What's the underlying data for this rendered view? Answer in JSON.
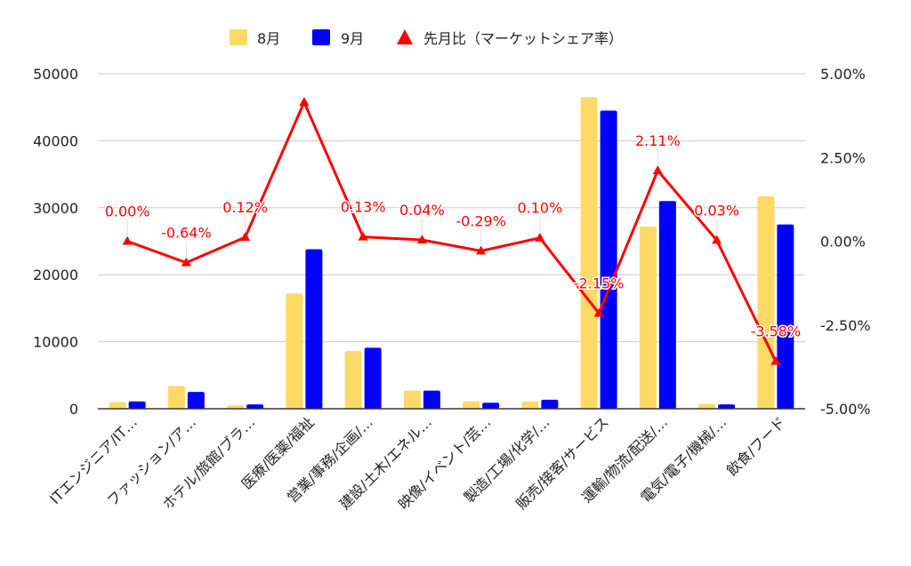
{
  "chart_data": {
    "type": "bar",
    "categories": [
      "ITエンジニア/IT…",
      "ファッション/ア…",
      "ホテル/旅館/ブラ…",
      "医療/医薬/福祉",
      "営業/事務/企画/…",
      "建設/土木/エネル…",
      "映像/イベント/芸…",
      "製造/工場/化学/…",
      "販売/接客/サービス",
      "運輸/物流/配送/…",
      "電気/電子/機械/…",
      "飲食/フード"
    ],
    "series": [
      {
        "name": "8月",
        "type": "bar",
        "axis": "left",
        "color": "#FFD966",
        "values": [
          1000,
          3400,
          500,
          17200,
          8600,
          2700,
          1100,
          1100,
          46500,
          27200,
          700,
          31700
        ]
      },
      {
        "name": "9月",
        "type": "bar",
        "axis": "left",
        "color": "#0000FF",
        "values": [
          1100,
          2500,
          650,
          23800,
          9100,
          2700,
          900,
          1350,
          44500,
          31000,
          650,
          27500
        ]
      },
      {
        "name": "先月比（マーケットシェア率）",
        "type": "line",
        "axis": "right",
        "color": "#FF0000",
        "marker": "triangle",
        "values": [
          0.0,
          -0.64,
          0.12,
          4.15,
          0.13,
          0.04,
          -0.29,
          0.1,
          -2.15,
          2.11,
          0.03,
          -3.58
        ],
        "labels": [
          "0.00%",
          "-0.64%",
          "0.12%",
          "",
          "0.13%",
          "0.04%",
          "-0.29%",
          "0.10%",
          "-2.15%",
          "2.11%",
          "0.03%",
          "-3.58%"
        ]
      }
    ],
    "y_left": {
      "min": 0,
      "max": 50000,
      "ticks": [
        "0",
        "10000",
        "20000",
        "30000",
        "40000",
        "50000"
      ]
    },
    "y_right": {
      "min": -5,
      "max": 5,
      "ticks": [
        "-5.00%",
        "-2.50%",
        "0.00%",
        "2.50%",
        "5.00%"
      ]
    },
    "grid": true,
    "legend_position": "top-center"
  }
}
